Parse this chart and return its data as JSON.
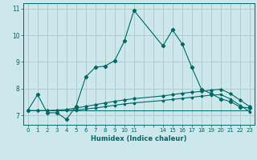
{
  "bg_color": "#cce8ea",
  "grid_color": "#aac8cc",
  "line_color": "#006868",
  "xlabel": "Humidex (Indice chaleur)",
  "ylim": [
    6.65,
    11.2
  ],
  "xlim": [
    -0.5,
    23.5
  ],
  "yticks": [
    7,
    8,
    9,
    10,
    11
  ],
  "series1_x": [
    0,
    1,
    2,
    3,
    4,
    5,
    6,
    7,
    8,
    9,
    10,
    11,
    14,
    15,
    16,
    17,
    18,
    19,
    20,
    21,
    22,
    23
  ],
  "series1_y": [
    7.2,
    7.78,
    7.1,
    7.1,
    6.85,
    7.35,
    8.45,
    8.8,
    8.85,
    9.05,
    9.78,
    10.93,
    9.6,
    10.2,
    9.68,
    8.8,
    7.98,
    7.82,
    7.62,
    7.52,
    7.32,
    7.28
  ],
  "series2_x": [
    0,
    1,
    2,
    3,
    4,
    5,
    6,
    7,
    8,
    9,
    10,
    11,
    14,
    15,
    16,
    17,
    18,
    19,
    20,
    21,
    22,
    23
  ],
  "series2_y": [
    7.18,
    7.18,
    7.18,
    7.2,
    7.22,
    7.28,
    7.34,
    7.4,
    7.47,
    7.53,
    7.58,
    7.63,
    7.73,
    7.78,
    7.83,
    7.87,
    7.9,
    7.95,
    7.98,
    7.82,
    7.58,
    7.33
  ],
  "series3_x": [
    0,
    1,
    2,
    3,
    4,
    5,
    6,
    7,
    8,
    9,
    10,
    11,
    14,
    15,
    16,
    17,
    18,
    19,
    20,
    21,
    22,
    23
  ],
  "series3_y": [
    7.18,
    7.18,
    7.18,
    7.18,
    7.18,
    7.2,
    7.24,
    7.28,
    7.33,
    7.38,
    7.43,
    7.47,
    7.56,
    7.6,
    7.64,
    7.68,
    7.72,
    7.76,
    7.78,
    7.62,
    7.38,
    7.14
  ],
  "series4_x": [
    0,
    1,
    2,
    3,
    4,
    5,
    6,
    7,
    8,
    9,
    10,
    11,
    14,
    15,
    16,
    17,
    18,
    19,
    20,
    21,
    22,
    23
  ],
  "series4_y": [
    7.18,
    7.18,
    7.18,
    7.18,
    7.18,
    7.18,
    7.18,
    7.18,
    7.18,
    7.18,
    7.18,
    7.18,
    7.18,
    7.18,
    7.18,
    7.18,
    7.18,
    7.18,
    7.18,
    7.18,
    7.18,
    7.18
  ]
}
